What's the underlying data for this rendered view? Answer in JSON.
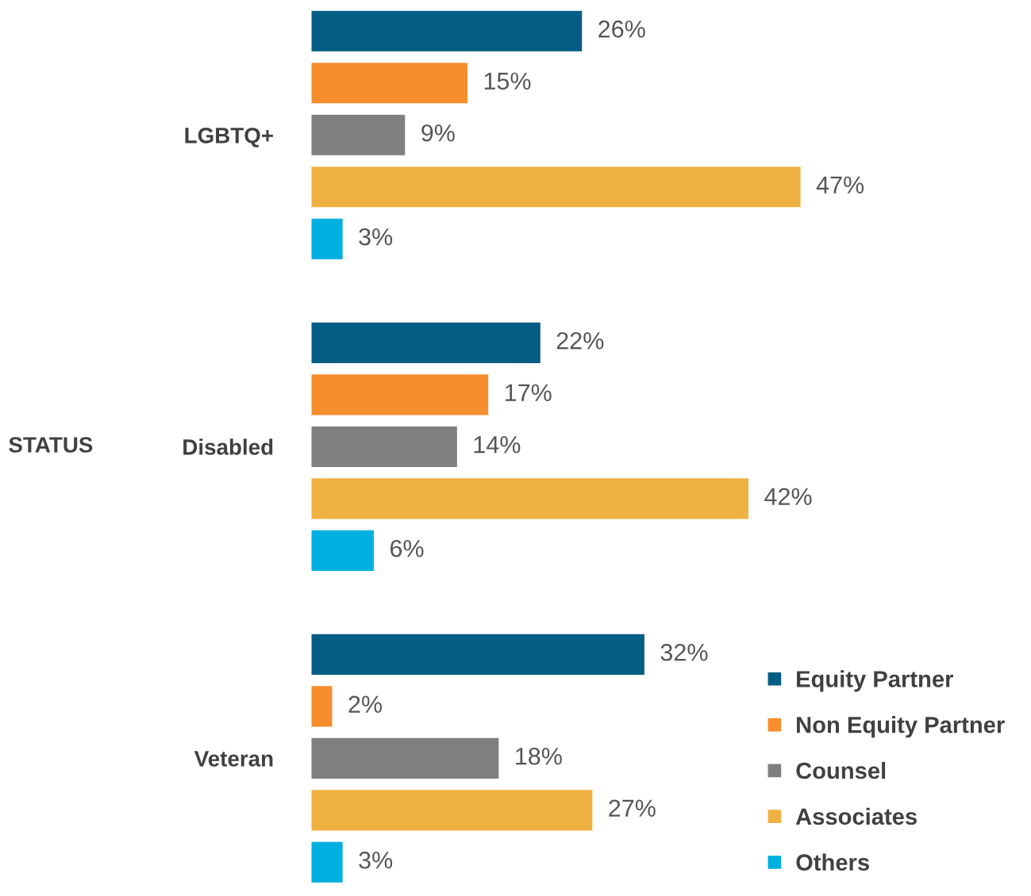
{
  "chart_data": {
    "type": "bar",
    "orientation": "horizontal",
    "categories": [
      "LGBTQ+",
      "Disabled",
      "Veteran"
    ],
    "series": [
      {
        "name": "Equity Partner",
        "color": "#045d84",
        "values": [
          26,
          22,
          32
        ],
        "value_labels": [
          "26%",
          "22%",
          "32%"
        ]
      },
      {
        "name": "Non Equity Partner",
        "color": "#f68e2e",
        "values": [
          15,
          17,
          2
        ],
        "value_labels": [
          "15%",
          "17%",
          "2%"
        ]
      },
      {
        "name": "Counsel",
        "color": "#7f7f7f",
        "values": [
          9,
          14,
          18
        ],
        "value_labels": [
          "9%",
          "14%",
          "18%"
        ]
      },
      {
        "name": "Associates",
        "color": "#efb142",
        "values": [
          47,
          42,
          27
        ],
        "value_labels": [
          "47%",
          "42%",
          "27%"
        ]
      },
      {
        "name": "Others",
        "color": "#00b0e0",
        "values": [
          3,
          6,
          3
        ],
        "value_labels": [
          "3%",
          "6%",
          "3%"
        ]
      }
    ],
    "annotations": [
      "STATUS"
    ],
    "legend": "bottom right",
    "grid": false,
    "tick_labels": "y"
  }
}
